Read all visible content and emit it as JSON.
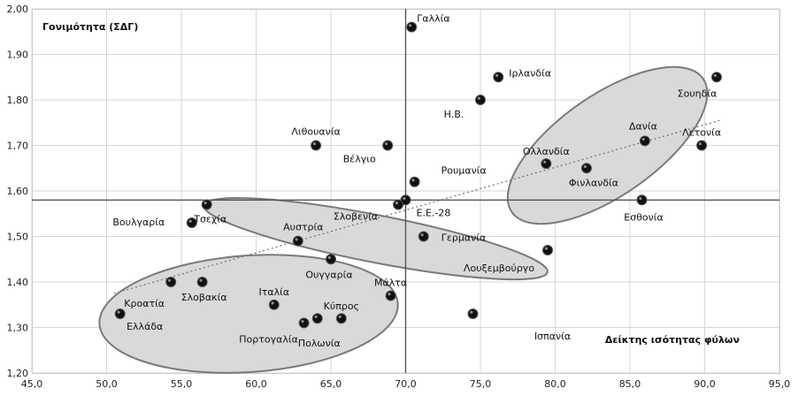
{
  "chart_data": {
    "type": "scatter",
    "ylabel": "Γονιμότητα (ΣΔΓ)",
    "xlabel": "Δείκτης ισότητας φύλων",
    "xlim": [
      45,
      95
    ],
    "ylim": [
      1.2,
      2.0
    ],
    "x_ticks": [
      "45,0",
      "50,0",
      "55,0",
      "60,0",
      "65,0",
      "70,0",
      "75,0",
      "80,0",
      "85,0",
      "90,0",
      "95,0"
    ],
    "x_tick_values": [
      45,
      50,
      55,
      60,
      65,
      70,
      75,
      80,
      85,
      90,
      95
    ],
    "y_ticks": [
      "1,20",
      "1,30",
      "1,40",
      "1,50",
      "1,60",
      "1,70",
      "1,80",
      "1,90",
      "2,00"
    ],
    "y_tick_values": [
      1.2,
      1.3,
      1.4,
      1.5,
      1.6,
      1.7,
      1.8,
      1.9,
      2.0
    ],
    "grid": true,
    "reference_lines": {
      "x": 70.0,
      "y": 1.58
    },
    "trendline": {
      "style": "dotted",
      "from": [
        50.5,
        1.375
      ],
      "to": [
        91.0,
        1.755
      ]
    },
    "points": [
      {
        "label": "Γαλλία",
        "x": 70.4,
        "y": 1.96,
        "ldx": 6,
        "ldy": -10,
        "anchor": "start"
      },
      {
        "label": "Ιρλανδία",
        "x": 76.2,
        "y": 1.85,
        "ldx": 12,
        "ldy": -5,
        "anchor": "start"
      },
      {
        "label": "Σουηδία",
        "x": 90.8,
        "y": 1.85,
        "ldx": -22,
        "ldy": 18,
        "anchor": "middle"
      },
      {
        "label": "Η.Β.",
        "x": 75.0,
        "y": 1.8,
        "ldx": -30,
        "ldy": 16,
        "anchor": "middle"
      },
      {
        "label": "Λιθουανία",
        "x": 64.0,
        "y": 1.7,
        "ldx": 0,
        "ldy": -16,
        "anchor": "middle"
      },
      {
        "label": "Βέλγιο",
        "x": 68.8,
        "y": 1.7,
        "ldx": -32,
        "ldy": 15,
        "anchor": "middle"
      },
      {
        "label": "Δανία",
        "x": 86.0,
        "y": 1.71,
        "ldx": -2,
        "ldy": -17,
        "anchor": "middle"
      },
      {
        "label": "Λετονία",
        "x": 89.8,
        "y": 1.7,
        "ldx": 0,
        "ldy": -15,
        "anchor": "middle"
      },
      {
        "label": "Ολλανδία",
        "x": 79.4,
        "y": 1.66,
        "ldx": 0,
        "ldy": -14,
        "anchor": "middle"
      },
      {
        "label": "Φινλανδία",
        "x": 82.1,
        "y": 1.65,
        "ldx": 8,
        "ldy": 16,
        "anchor": "middle"
      },
      {
        "label": "Ρουμανία",
        "x": 70.6,
        "y": 1.62,
        "ldx": 30,
        "ldy": -13,
        "anchor": "start"
      },
      {
        "label": "Εσθονία",
        "x": 85.8,
        "y": 1.58,
        "ldx": 2,
        "ldy": 19,
        "anchor": "middle"
      },
      {
        "label": "Ε.Ε.-28",
        "x": 70.0,
        "y": 1.58,
        "ldx": 12,
        "ldy": 14,
        "anchor": "start"
      },
      {
        "label": "Σλοβενία",
        "x": 69.5,
        "y": 1.57,
        "ldx": -48,
        "ldy": 13,
        "anchor": "middle"
      },
      {
        "label": "Τσεχία",
        "x": 56.7,
        "y": 1.57,
        "ldx": 4,
        "ldy": 16,
        "anchor": "middle"
      },
      {
        "label": "Βουλγαρία",
        "x": 55.7,
        "y": 1.53,
        "ldx": -60,
        "ldy": -1,
        "anchor": "middle"
      },
      {
        "label": "Αυστρία",
        "x": 62.8,
        "y": 1.49,
        "ldx": 6,
        "ldy": -16,
        "anchor": "middle"
      },
      {
        "label": "Γερμανία",
        "x": 71.2,
        "y": 1.5,
        "ldx": 20,
        "ldy": 1,
        "anchor": "start"
      },
      {
        "label": "Λουξεμβούργο",
        "x": 79.5,
        "y": 1.47,
        "ldx": -55,
        "ldy": 20,
        "anchor": "middle"
      },
      {
        "label": "Ουγγαρία",
        "x": 65.0,
        "y": 1.45,
        "ldx": -2,
        "ldy": 17,
        "anchor": "middle"
      },
      {
        "label": "Κροατία",
        "x": 54.3,
        "y": 1.4,
        "ldx": -30,
        "ldy": 24,
        "anchor": "middle"
      },
      {
        "label": "Σλοβακία",
        "x": 56.4,
        "y": 1.4,
        "ldx": 2,
        "ldy": 17,
        "anchor": "middle"
      },
      {
        "label": "Ιταλία",
        "x": 61.2,
        "y": 1.35,
        "ldx": 0,
        "ldy": -15,
        "anchor": "middle"
      },
      {
        "label": "Μάλτα",
        "x": 69.0,
        "y": 1.37,
        "ldx": 0,
        "ldy": -15,
        "anchor": "middle"
      },
      {
        "label": "Κύπρος",
        "x": 65.7,
        "y": 1.32,
        "ldx": 0,
        "ldy": -14,
        "anchor": "middle"
      },
      {
        "label": "Ελλάδα",
        "x": 50.9,
        "y": 1.33,
        "ldx": 28,
        "ldy": 14,
        "anchor": "middle"
      },
      {
        "label": "Πορτογαλία",
        "x": 63.2,
        "y": 1.31,
        "ldx": -40,
        "ldy": 18,
        "anchor": "middle"
      },
      {
        "label": "Πολωνία",
        "x": 64.1,
        "y": 1.32,
        "ldx": 2,
        "ldy": 28,
        "anchor": "middle"
      },
      {
        "label": "Ισπανία",
        "x": 74.5,
        "y": 1.33,
        "ldx": 90,
        "ldy": 25,
        "anchor": "middle"
      }
    ],
    "clusters": [
      {
        "name": "nordic-cluster-ellipse",
        "cx": 83.5,
        "cy": 1.7,
        "rx": 7.8,
        "ry": 0.11,
        "angle": -35
      },
      {
        "name": "middle-cluster-ellipse",
        "cx": 68.0,
        "cy": 1.495,
        "rx": 11.7,
        "ry": 0.052,
        "angle": 11
      },
      {
        "name": "south-cluster-ellipse",
        "cx": 59.5,
        "cy": 1.33,
        "rx": 10.0,
        "ry": 0.128,
        "angle": -4
      }
    ],
    "colors": {
      "grid": "#d6d6d6",
      "ellipse_fill": "#d9d9d9",
      "ellipse_stroke": "#7a7a7a",
      "marker": "#111111",
      "refline": "#555555"
    }
  }
}
